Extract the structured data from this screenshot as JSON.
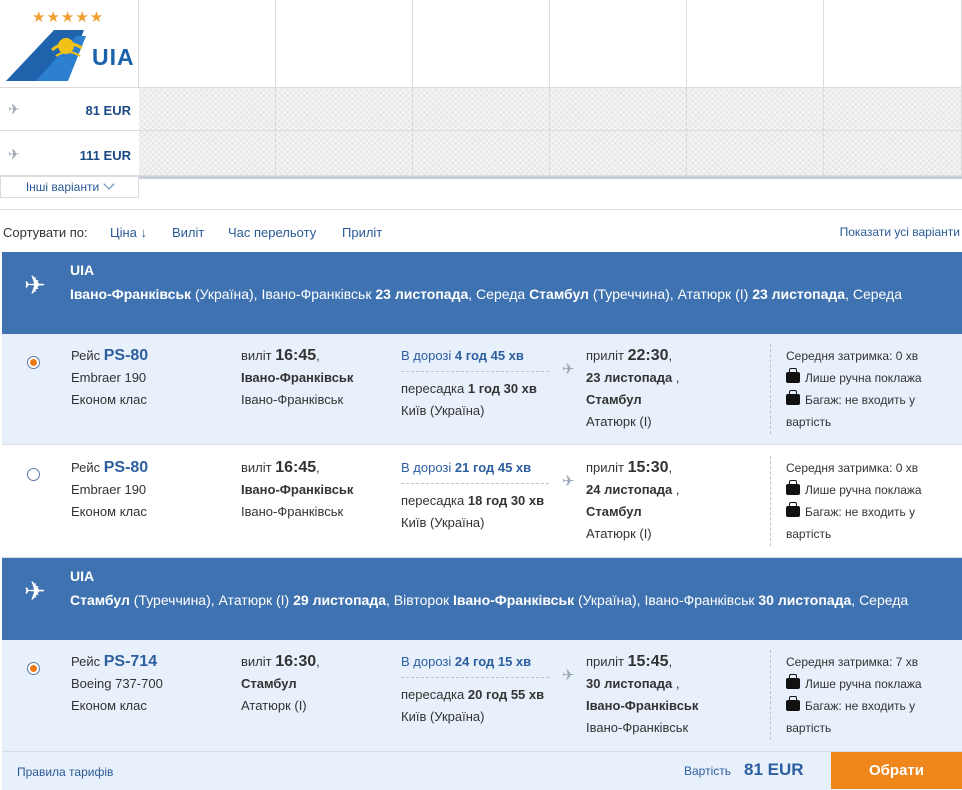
{
  "matrix": {
    "airline_logo_text": "UIA",
    "stars": "★★★★★",
    "prices": [
      {
        "label": "81 EUR"
      },
      {
        "label": "111 EUR"
      }
    ],
    "more_variants": "Інші варіанти"
  },
  "sort": {
    "label": "Сортувати по:",
    "options": [
      "Ціна ↓",
      "Виліт",
      "Час перельоту",
      "Приліт"
    ],
    "show_all": "Показати усі варіанти"
  },
  "segments": [
    {
      "airline": "UIA",
      "route": {
        "from_city": "Івано-Франківськ",
        "from_country": "(Україна),",
        "from_airport": "Івано-Франківськ",
        "from_date": "23 листопада",
        "from_day": ", Середа",
        "to_city": "Стамбул",
        "to_country": "(Туреччина),",
        "to_airport": "Ататюрк (I)",
        "to_date": "23 листопада",
        "to_day": "Середа"
      },
      "flights": [
        {
          "selected": true,
          "flight_label": "Рейс",
          "flight_no": "PS-80",
          "aircraft": "Embraer 190",
          "cabin": "Економ клас",
          "dep_label": "виліт",
          "dep_time": "16:45",
          "dep_city": "Івано-Франківськ",
          "dep_airport": "Івано-Франківськ",
          "duration_label": "В дорозі",
          "duration": "4 год 45 хв",
          "transfer_label": "пересадка",
          "transfer": "1 год 30 хв",
          "transfer_city": "Київ (Україна)",
          "arr_label": "приліт",
          "arr_time": "22:30",
          "arr_date": "23 листопада",
          "arr_city": "Стамбул",
          "arr_airport": "Ататюрк (I)",
          "delay_label": "Середня затримка:",
          "delay": "0 хв",
          "hand_luggage": "Лише ручна поклажа",
          "baggage_line1": "Багаж: не входить у",
          "baggage_line2": "вартість"
        },
        {
          "selected": false,
          "flight_label": "Рейс",
          "flight_no": "PS-80",
          "aircraft": "Embraer 190",
          "cabin": "Економ клас",
          "dep_label": "виліт",
          "dep_time": "16:45",
          "dep_city": "Івано-Франківськ",
          "dep_airport": "Івано-Франківськ",
          "duration_label": "В дорозі",
          "duration": "21 год 45 хв",
          "transfer_label": "пересадка",
          "transfer": "18 год 30 хв",
          "transfer_city": "Київ (Україна)",
          "arr_label": "приліт",
          "arr_time": "15:30",
          "arr_date": "24 листопада",
          "arr_city": "Стамбул",
          "arr_airport": "Ататюрк (I)",
          "delay_label": "Середня затримка:",
          "delay": "0 хв",
          "hand_luggage": "Лише ручна поклажа",
          "baggage_line1": "Багаж: не входить у",
          "baggage_line2": "вартість"
        }
      ]
    },
    {
      "airline": "UIA",
      "route": {
        "from_city": "Стамбул",
        "from_country": "(Туреччина),",
        "from_airport": "Ататюрк (I)",
        "from_date": "29 листопада",
        "from_day": ", Вівторок",
        "to_city": "Івано-Франківськ",
        "to_country": "(Україна),",
        "to_airport": "Івано-Франківськ",
        "to_date": "30 листопада",
        "to_day": "Середа"
      },
      "flights": [
        {
          "selected": true,
          "flight_label": "Рейс",
          "flight_no": "PS-714",
          "aircraft": "Boeing 737-700",
          "cabin": "Економ клас",
          "dep_label": "виліт",
          "dep_time": "16:30",
          "dep_city": "Стамбул",
          "dep_airport": "Ататюрк (I)",
          "duration_label": "В дорозі",
          "duration": "24 год 15 хв",
          "transfer_label": "пересадка",
          "transfer": "20 год 55 хв",
          "transfer_city": "Київ (Україна)",
          "arr_label": "приліт",
          "arr_time": "15:45",
          "arr_date": "30 листопада",
          "arr_city": "Івано-Франківськ",
          "arr_airport": "Івано-Франківськ",
          "delay_label": "Середня затримка:",
          "delay": "7 хв",
          "hand_luggage": "Лише ручна поклажа",
          "baggage_line1": "Багаж: не входить у",
          "baggage_line2": "вартість"
        }
      ]
    }
  ],
  "footer": {
    "rules": "Правила тарифів",
    "cost_label": "Вартість",
    "cost": "81 EUR",
    "select": "Обрати"
  },
  "colors": {
    "header_blue": "#3f72b0",
    "selected_row": "#e8f0fb",
    "accent_orange": "#ee861c",
    "link_blue": "#2a5a96"
  }
}
